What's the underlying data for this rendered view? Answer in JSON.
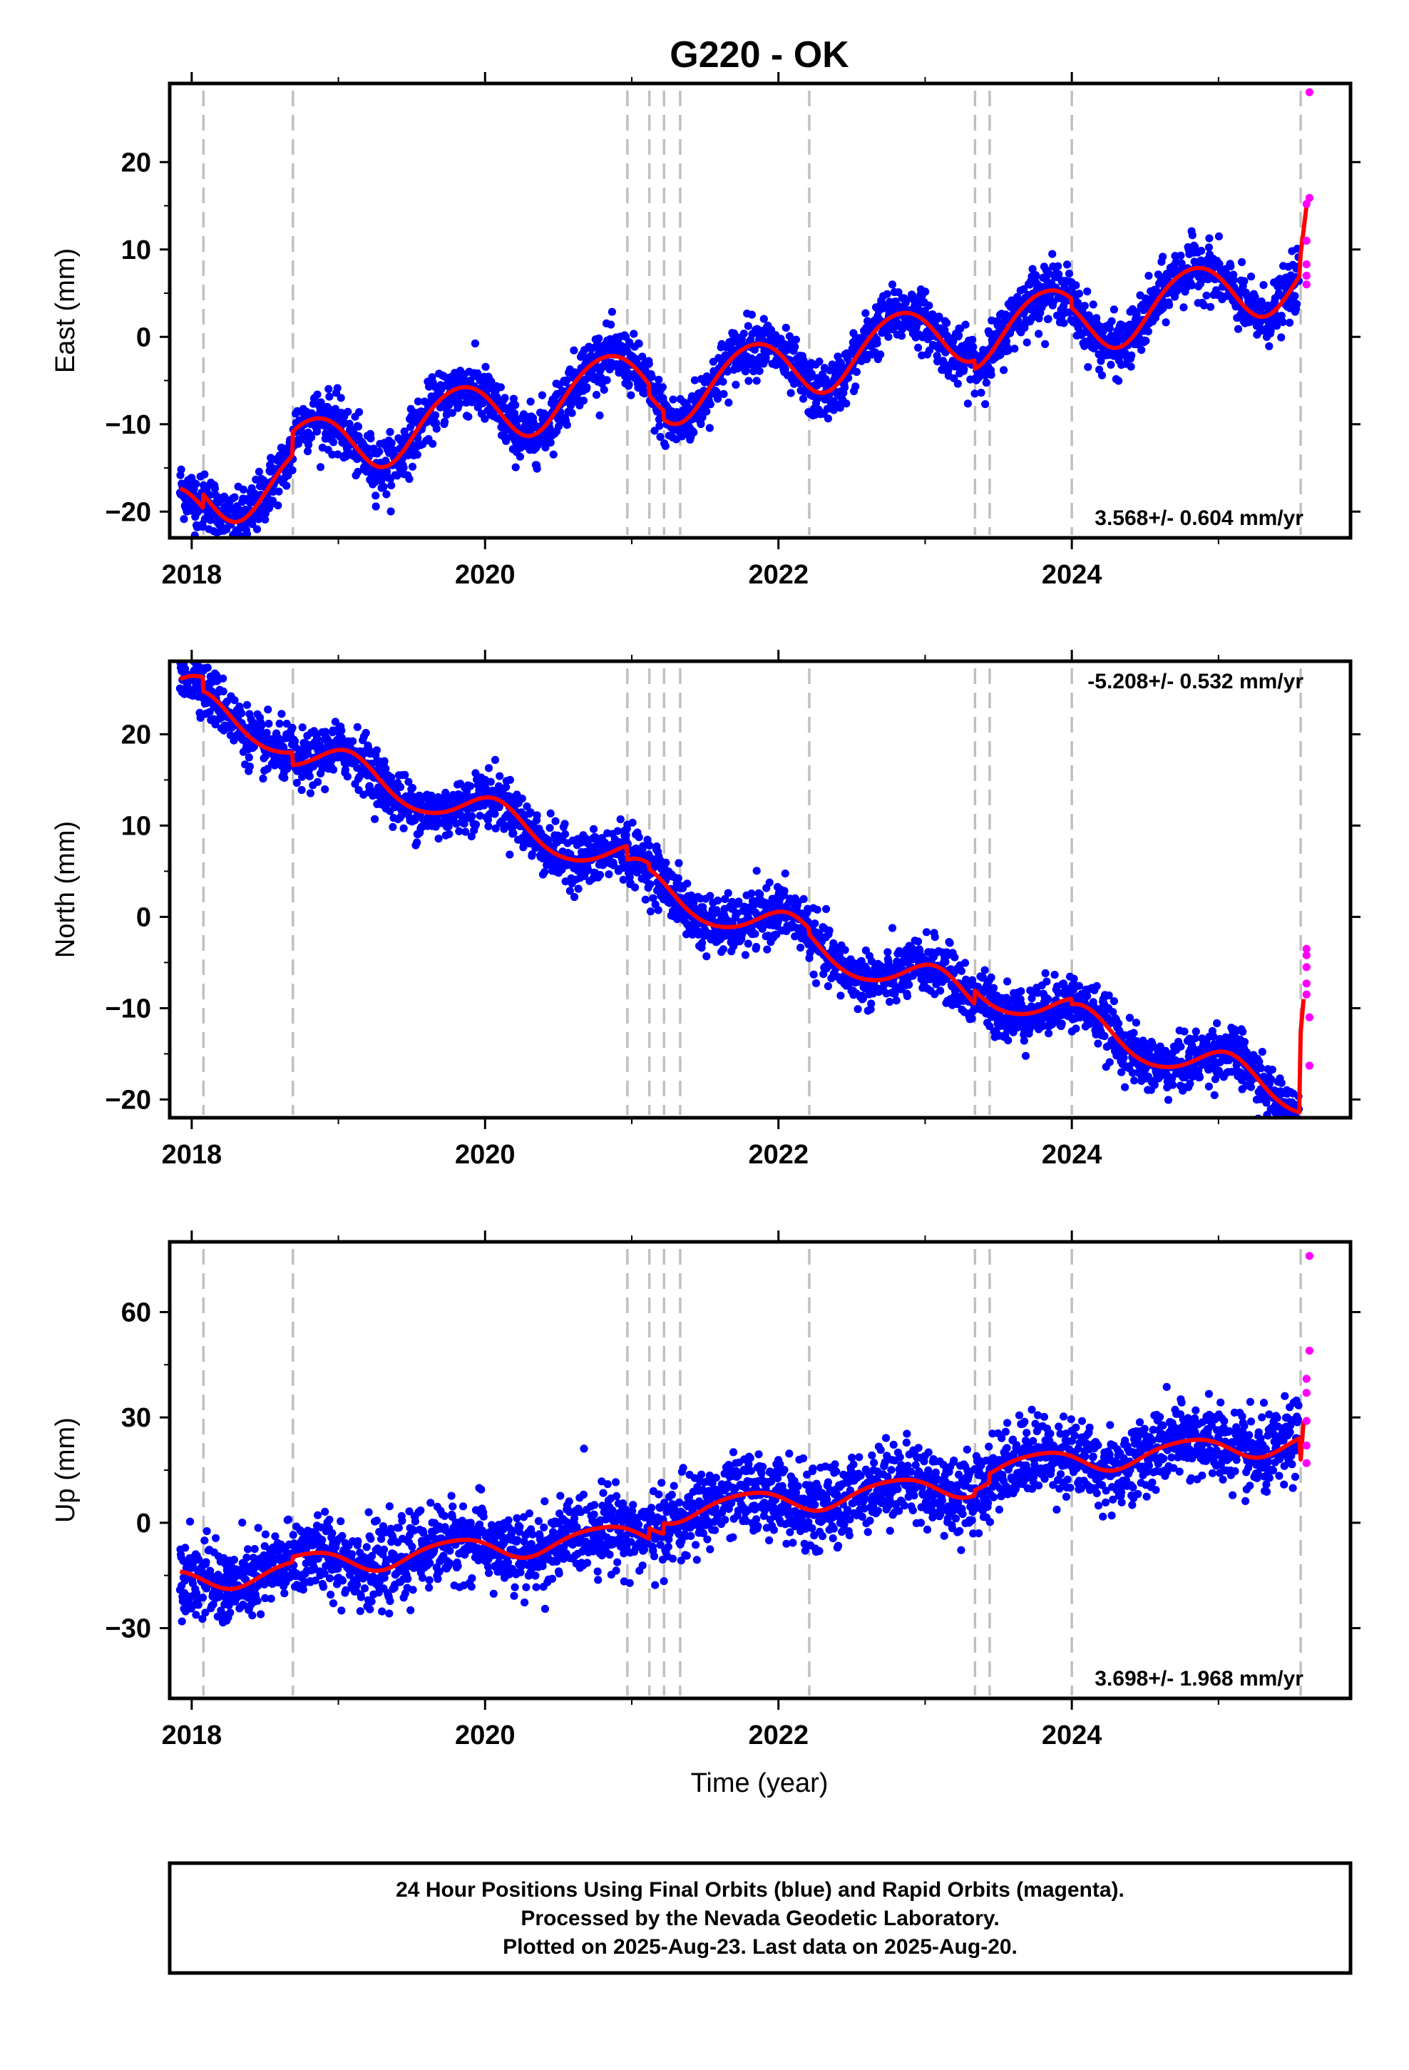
{
  "title": "G220 - OK",
  "footer": {
    "lines": [
      "24 Hour Positions Using Final Orbits (blue) and Rapid Orbits (magenta).",
      "Processed by the Nevada Geodetic Laboratory.",
      "Plotted on 2025-Aug-23. Last data on 2025-Aug-20."
    ]
  },
  "colors": {
    "final_orbits": "#0000ff",
    "rapid_orbits": "#ff00ff",
    "model": "#ff0000",
    "event_lines": "#c0c0c0"
  },
  "event_lines": [
    2018.08,
    2018.69,
    2020.97,
    2021.12,
    2021.22,
    2021.33,
    2022.21,
    2023.34,
    2023.44,
    2024.0,
    2025.56
  ],
  "chart_data": [
    {
      "type": "scatter",
      "component": "east",
      "ylabel": "East (mm)",
      "xlabel": "",
      "xlim": [
        2017.85,
        2025.9
      ],
      "ylim": [
        -23,
        29
      ],
      "xticks": [
        2018,
        2020,
        2022,
        2024
      ],
      "yticks": [
        -20,
        -10,
        0,
        10,
        20
      ],
      "rate_label": "3.568+/- 0.604 mm/yr",
      "rate_position": "bottom-right",
      "series": [
        {
          "name": "Final Orbits (blue)",
          "style": "points",
          "color": "#0000ff",
          "model": {
            "start": 2017.92,
            "end": 2025.55,
            "trend": 3.568,
            "offset": -6.6,
            "ref": 2021.75,
            "amp1": 3.6,
            "phase1": 2.7,
            "amp2": 0.3,
            "phase2": 1.0,
            "noise": 1.6,
            "steps": [
              [
                2018.08,
                1.6
              ],
              [
                2018.69,
                2.7
              ],
              [
                2021.12,
                -1.2
              ],
              [
                2021.22,
                -1.0
              ],
              [
                2023.34,
                -1.0
              ],
              [
                2024.0,
                -1.0
              ]
            ]
          }
        },
        {
          "name": "Rapid Orbits (magenta)",
          "style": "points",
          "color": "#ff00ff",
          "points": [
            [
              2025.6,
              6.0
            ],
            [
              2025.6,
              7.0
            ],
            [
              2025.6,
              8.3
            ],
            [
              2025.6,
              11.0
            ],
            [
              2025.6,
              15.2
            ],
            [
              2025.62,
              15.9
            ],
            [
              2025.62,
              28.0
            ]
          ]
        },
        {
          "name": "Model",
          "style": "line",
          "color": "#ff0000",
          "model": {
            "start": 2017.92,
            "end": 2025.55,
            "trend": 3.568,
            "offset": -6.6,
            "ref": 2021.75,
            "amp1": 3.6,
            "phase1": 2.7,
            "amp2": 0.3,
            "phase2": 1.0,
            "steps": [
              [
                2018.08,
                1.6
              ],
              [
                2018.69,
                2.7
              ],
              [
                2021.12,
                -1.2
              ],
              [
                2021.22,
                -1.0
              ],
              [
                2023.34,
                -1.0
              ],
              [
                2024.0,
                -1.0
              ]
            ]
          },
          "tail": [
            [
              2025.56,
              9.5
            ],
            [
              2025.6,
              15.0
            ]
          ]
        }
      ]
    },
    {
      "type": "scatter",
      "component": "north",
      "ylabel": "North (mm)",
      "xlabel": "",
      "xlim": [
        2017.85,
        2025.9
      ],
      "ylim": [
        -22,
        28
      ],
      "xticks": [
        2018,
        2020,
        2022,
        2024
      ],
      "yticks": [
        -20,
        -10,
        0,
        10,
        20
      ],
      "rate_label": "-5.208+/- 0.532 mm/yr",
      "rate_position": "top-right",
      "series": [
        {
          "name": "Final Orbits (blue)",
          "style": "points",
          "color": "#0000ff",
          "model": {
            "start": 2017.92,
            "end": 2025.55,
            "trend": -5.208,
            "offset": 4.9,
            "ref": 2021.75,
            "amp1": 2.0,
            "phase1": 1.2,
            "amp2": 0.2,
            "phase2": 0.5,
            "noise": 1.5,
            "steps": [
              [
                2018.08,
                -1.5
              ],
              [
                2018.69,
                -1.4
              ],
              [
                2020.97,
                -1.5
              ],
              [
                2021.12,
                -0.6
              ],
              [
                2022.21,
                -0.6
              ],
              [
                2023.34,
                1.5
              ],
              [
                2024.0,
                -0.6
              ]
            ]
          }
        },
        {
          "name": "Rapid Orbits (magenta)",
          "style": "points",
          "color": "#ff00ff",
          "points": [
            [
              2025.6,
              -3.5
            ],
            [
              2025.6,
              -4.2
            ],
            [
              2025.6,
              -5.5
            ],
            [
              2025.6,
              -7.3
            ],
            [
              2025.6,
              -8.5
            ],
            [
              2025.62,
              -11.0
            ],
            [
              2025.62,
              -16.3
            ]
          ]
        },
        {
          "name": "Model",
          "style": "line",
          "color": "#ff0000",
          "model": {
            "start": 2017.92,
            "end": 2025.55,
            "trend": -5.208,
            "offset": 4.9,
            "ref": 2021.75,
            "amp1": 2.0,
            "phase1": 1.2,
            "amp2": 0.2,
            "phase2": 0.5,
            "steps": [
              [
                2018.08,
                -1.5
              ],
              [
                2018.69,
                -1.4
              ],
              [
                2020.97,
                -1.5
              ],
              [
                2021.12,
                -0.6
              ],
              [
                2022.21,
                -0.6
              ],
              [
                2023.34,
                1.5
              ],
              [
                2024.0,
                -0.6
              ]
            ]
          },
          "tail": [
            [
              2025.56,
              -12.6
            ],
            [
              2025.58,
              -9.0
            ]
          ]
        }
      ]
    },
    {
      "type": "scatter",
      "component": "up",
      "ylabel": "Up (mm)",
      "xlabel": "Time (year)",
      "xlim": [
        2017.85,
        2025.9
      ],
      "ylim": [
        -50,
        80
      ],
      "xticks": [
        2018,
        2020,
        2022,
        2024
      ],
      "yticks": [
        -30,
        0,
        30,
        60
      ],
      "rate_label": "3.698+/- 1.968 mm/yr",
      "rate_position": "bottom-right",
      "series": [
        {
          "name": "Final Orbits (blue)",
          "style": "points",
          "color": "#0000ff",
          "model": {
            "start": 2017.92,
            "end": 2025.55,
            "trend": 3.698,
            "offset": -2.2,
            "ref": 2021.75,
            "amp1": 3.3,
            "phase1": 2.9,
            "amp2": 0.5,
            "phase2": 1.5,
            "noise": 5.5,
            "steps": [
              [
                2018.69,
                1.5
              ],
              [
                2021.12,
                3.0
              ],
              [
                2021.22,
                3.0
              ],
              [
                2023.34,
                1.5
              ],
              [
                2023.44,
                2.5
              ],
              [
                2025.56,
                10.0
              ]
            ]
          }
        },
        {
          "name": "Rapid Orbits (magenta)",
          "style": "points",
          "color": "#ff00ff",
          "points": [
            [
              2025.6,
              17.0
            ],
            [
              2025.6,
              22.0
            ],
            [
              2025.6,
              29.0
            ],
            [
              2025.6,
              37.0
            ],
            [
              2025.6,
              41.0
            ],
            [
              2025.62,
              49.0
            ],
            [
              2025.62,
              76.0
            ]
          ]
        },
        {
          "name": "Model",
          "style": "line",
          "color": "#ff0000",
          "model": {
            "start": 2017.92,
            "end": 2025.55,
            "trend": 3.698,
            "offset": -2.2,
            "ref": 2021.75,
            "amp1": 3.3,
            "phase1": 2.9,
            "amp2": 0.5,
            "phase2": 1.5,
            "steps": [
              [
                2018.69,
                1.5
              ],
              [
                2021.12,
                3.0
              ],
              [
                2021.22,
                3.0
              ],
              [
                2023.34,
                1.5
              ],
              [
                2023.44,
                2.5
              ]
            ]
          },
          "tail": [
            [
              2025.56,
              18.0
            ],
            [
              2025.58,
              29.0
            ]
          ]
        }
      ]
    }
  ]
}
